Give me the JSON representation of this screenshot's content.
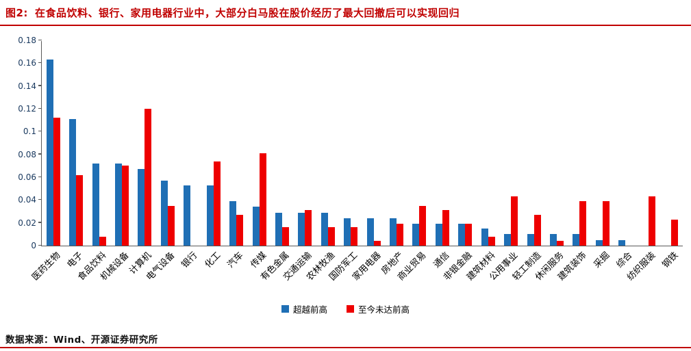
{
  "header": {
    "fig_label": "图2:",
    "title": "在食品饮料、银行、家用电器行业中，大部分白马股在股价经历了最大回撤后可以实现回归"
  },
  "footer": {
    "source_note": "数据来源：Wind、开源证券研究所"
  },
  "colors": {
    "accent_dark_red": "#C00000",
    "series_blue": "#1F6FB5",
    "series_red": "#EE0000",
    "y_axis_text": "#17375D",
    "axis_line": "#595959"
  },
  "chart_data": {
    "type": "bar",
    "title": "在食品饮料、银行、家用电器行业中，大部分白马股在股价经历了最大回撤后可以实现回归",
    "xlabel": "",
    "ylabel": "",
    "ylim": [
      0,
      0.18
    ],
    "yticks": [
      "0",
      "0.02",
      "0.04",
      "0.06",
      "0.08",
      "0.1",
      "0.12",
      "0.14",
      "0.16",
      "0.18"
    ],
    "grid": false,
    "legend_position": "bottom",
    "categories": [
      "医药生物",
      "电子",
      "食品饮料",
      "机械设备",
      "计算机",
      "电气设备",
      "银行",
      "化工",
      "汽车",
      "传媒",
      "有色金属",
      "交通运输",
      "农林牧渔",
      "国防军工",
      "家用电器",
      "房地产",
      "商业贸易",
      "通信",
      "非银金融",
      "建筑材料",
      "公用事业",
      "轻工制造",
      "休闲服务",
      "建筑装饰",
      "采掘",
      "综合",
      "纺织服装",
      "钢铁"
    ],
    "series": [
      {
        "name": "超越前高",
        "color": "#1F6FB5",
        "values": [
          0.163,
          0.111,
          0.072,
          0.072,
          0.067,
          0.057,
          0.053,
          0.053,
          0.039,
          0.034,
          0.029,
          0.029,
          0.029,
          0.024,
          0.024,
          0.024,
          0.019,
          0.019,
          0.019,
          0.015,
          0.01,
          0.01,
          0.01,
          0.01,
          0.005,
          0.005,
          0,
          0
        ]
      },
      {
        "name": "至今未达前高",
        "color": "#EE0000",
        "values": [
          0.112,
          0.062,
          0.008,
          0.07,
          0.12,
          0.035,
          0,
          0.074,
          0.027,
          0.081,
          0.016,
          0.031,
          0.016,
          0.016,
          0.004,
          0.019,
          0.035,
          0.031,
          0.019,
          0.008,
          0.043,
          0.027,
          0.004,
          0.039,
          0.039,
          0,
          0.043,
          0.023
        ]
      }
    ]
  }
}
